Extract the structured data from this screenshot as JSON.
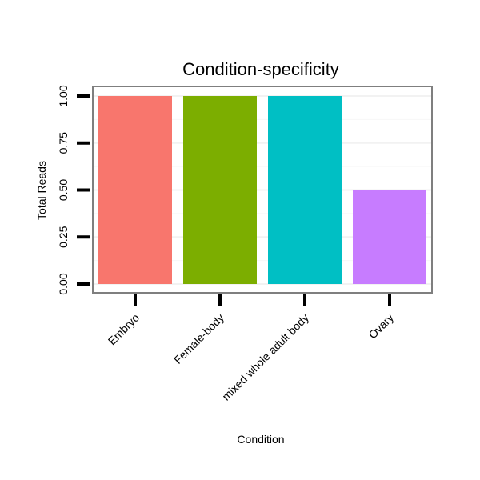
{
  "chart_data": {
    "type": "bar",
    "title": "Condition-specificity",
    "xlabel": "Condition",
    "ylabel": "Total Reads",
    "categories": [
      "Embryo",
      "Female-body",
      "mixed whole adult body",
      "Ovary"
    ],
    "values": [
      1.0,
      1.0,
      1.0,
      0.5
    ],
    "colors": [
      "#F8766D",
      "#7CAE00",
      "#00BFC4",
      "#C77CFF"
    ],
    "ylim": [
      0,
      1.0
    ],
    "yticks": [
      0.0,
      0.25,
      0.5,
      0.75,
      1.0
    ],
    "ytick_labels": [
      "0.00",
      "0.25",
      "0.50",
      "0.75",
      "1.00"
    ],
    "grid": true,
    "legend": "none"
  }
}
